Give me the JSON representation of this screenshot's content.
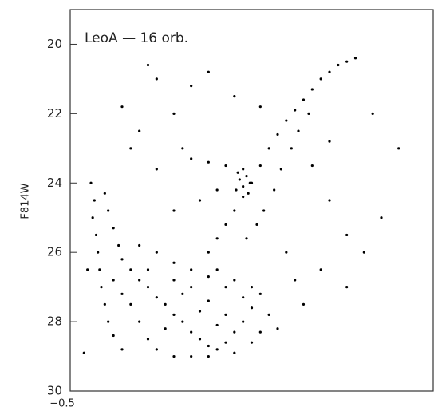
{
  "chart_data": {
    "type": "scatter",
    "title": "LeoA — 16 orb.",
    "y_label": "F814W",
    "xlim": [
      -0.5,
      1.6
    ],
    "xticks": [
      {
        "value": -0.5,
        "label": "−0.5"
      }
    ],
    "ylim": [
      30,
      19
    ],
    "yticks": [
      20,
      22,
      24,
      26,
      28,
      30
    ],
    "series": [
      {
        "color": "#000000",
        "x": [
          -0.38,
          -0.36,
          -0.37,
          -0.35,
          -0.34,
          -0.33,
          -0.32,
          -0.3,
          -0.28,
          -0.25,
          -0.2,
          -0.3,
          -0.28,
          -0.25,
          -0.22,
          -0.2,
          -0.15,
          -0.1,
          -0.05,
          0.0,
          0.05,
          0.1,
          0.15,
          0.2,
          0.25,
          0.3,
          0.35,
          0.4,
          0.45,
          0.5,
          0.55,
          0.6,
          0.5,
          0.4,
          0.3,
          0.2,
          0.1,
          0.0,
          -0.1,
          -0.15,
          -0.1,
          -0.05,
          0.0,
          0.1,
          0.2,
          0.3,
          0.45,
          -0.2,
          -0.25,
          0.05,
          0.15,
          0.25,
          0.35,
          0.3,
          0.4,
          0.2,
          -0.05,
          0.1,
          0.35,
          0.45,
          0.55,
          0.65,
          0.6,
          0.55,
          0.7,
          0.3,
          0.35,
          0.4,
          0.45,
          0.5,
          0.55,
          0.6,
          0.65,
          0.7,
          0.75,
          0.8,
          0.85,
          0.9,
          0.95,
          1.0,
          1.05,
          1.1,
          1.15,
          0.62,
          0.58,
          0.52,
          0.68,
          0.72,
          0.78,
          0.82,
          0.88,
          0.48,
          0.5,
          0.52,
          0.46,
          0.54,
          0.5,
          0.47,
          0.53,
          0.2,
          0.3,
          0.4,
          -0.1,
          0.0,
          0.1,
          -0.2,
          0.2,
          0.3,
          -0.05,
          0.15,
          0.0,
          -0.15,
          0.25,
          0.1,
          0.35,
          0.9,
          1.0,
          1.1,
          1.2,
          1.3,
          0.95,
          1.1,
          0.85,
          1.4,
          1.25,
          1.0,
          0.75,
          0.8,
          -0.42,
          -0.4,
          0.6,
          0.45
        ],
        "values": [
          24.0,
          24.5,
          25.0,
          25.5,
          26.0,
          26.5,
          27.0,
          27.5,
          28.0,
          28.4,
          28.8,
          24.3,
          24.8,
          25.3,
          25.8,
          26.2,
          26.5,
          26.8,
          27.0,
          27.3,
          27.5,
          27.8,
          28.0,
          28.3,
          28.5,
          28.7,
          28.8,
          28.6,
          28.3,
          28.0,
          27.6,
          27.2,
          27.3,
          27.0,
          26.7,
          26.5,
          26.3,
          26.0,
          25.8,
          27.5,
          28.0,
          28.5,
          28.8,
          29.0,
          29.0,
          29.0,
          28.9,
          27.2,
          26.8,
          28.2,
          27.2,
          27.7,
          28.1,
          27.4,
          27.8,
          27.0,
          26.5,
          26.8,
          26.5,
          26.8,
          27.0,
          27.8,
          28.3,
          28.6,
          28.2,
          26.0,
          25.6,
          25.2,
          24.8,
          24.4,
          24.0,
          23.5,
          23.0,
          22.6,
          22.2,
          21.9,
          21.6,
          21.3,
          21.0,
          20.8,
          20.6,
          20.5,
          20.4,
          24.8,
          25.2,
          25.6,
          24.2,
          23.6,
          23.0,
          22.5,
          22.0,
          23.9,
          24.1,
          23.8,
          24.2,
          24.0,
          23.6,
          23.7,
          24.3,
          23.3,
          23.4,
          23.5,
          22.5,
          21.0,
          22.0,
          21.8,
          21.2,
          20.8,
          20.6,
          23.0,
          23.6,
          23.0,
          24.5,
          24.8,
          24.2,
          23.5,
          24.5,
          25.5,
          26.0,
          25.0,
          26.5,
          27.0,
          27.5,
          23.0,
          22.0,
          22.8,
          26.0,
          26.8,
          28.9,
          26.5,
          21.8,
          21.5
        ]
      }
    ]
  }
}
